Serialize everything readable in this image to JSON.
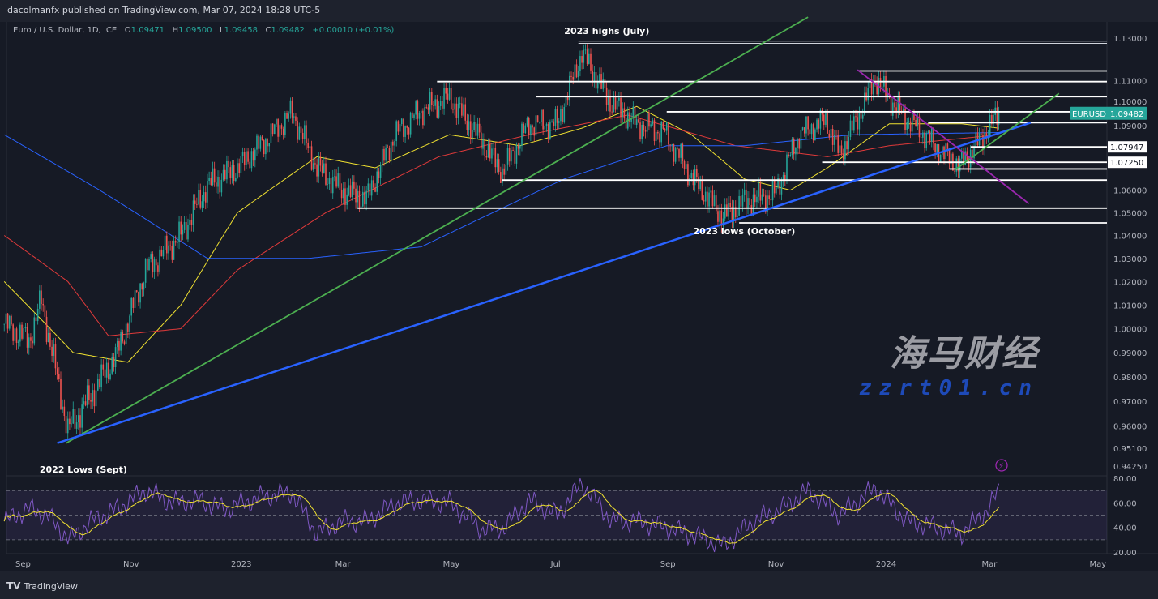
{
  "header": {
    "publisher": "dacolmanfx published on TradingView.com, Mar 07, 2024 18:28 UTC-5"
  },
  "legend": {
    "symbol": "Euro / U.S. Dollar, 1D, ICE",
    "o_label": "O",
    "open": "1.09471",
    "h_label": "H",
    "high": "1.09500",
    "l_label": "L",
    "low": "1.09458",
    "c_label": "C",
    "close": "1.09482",
    "change": "+0.00010 (+0.01%)"
  },
  "footer": {
    "brand": "TradingView",
    "logo": "17"
  },
  "watermark": {
    "text": "海马财经",
    "url": "zzrt01.cn"
  },
  "colors": {
    "background": "#161a25",
    "up": "#26a69a",
    "down": "#ef5350",
    "ma_fast": "#f0e130",
    "ma_mid": "#e03a3a",
    "ma_slow": "#2962ff",
    "trend_long_green": "#4caf50",
    "trend_blue": "#2962ff",
    "trend_purple": "#9c27b0",
    "rsi": "#7e57c2",
    "rsi_ma": "#f0e130",
    "label_bg": "#26a69a"
  },
  "chart_data": {
    "type": "candlestick",
    "symbol": "EURUSD",
    "scale": "log",
    "ylim": [
      0.9425,
      1.135
    ],
    "price_ticks": [
      "1.13000",
      "1.11000",
      "1.10000",
      "1.09000",
      "1.06000",
      "1.05000",
      "1.04000",
      "1.03000",
      "1.02000",
      "1.01000",
      "1.00000",
      "0.99000",
      "0.98000",
      "0.97000",
      "0.96000",
      "0.95100",
      "0.94250"
    ],
    "time_ticks": [
      {
        "label": "Sep",
        "date": "2022-09-01"
      },
      {
        "label": "Nov",
        "date": "2022-11-01"
      },
      {
        "label": "2023",
        "date": "2023-01-01"
      },
      {
        "label": "Mar",
        "date": "2023-03-01"
      },
      {
        "label": "May",
        "date": "2023-05-01"
      },
      {
        "label": "Jul",
        "date": "2023-07-01"
      },
      {
        "label": "Sep",
        "date": "2023-09-01"
      },
      {
        "label": "Nov",
        "date": "2023-11-01"
      },
      {
        "label": "2024",
        "date": "2024-01-01"
      },
      {
        "label": "Mar",
        "date": "2024-03-01"
      },
      {
        "label": "May",
        "date": "2024-05-01"
      }
    ],
    "price_path": [
      [
        "2022-08-22",
        1.002
      ],
      [
        "2022-09-05",
        0.995
      ],
      [
        "2022-09-12",
        1.012
      ],
      [
        "2022-09-27",
        0.958
      ],
      [
        "2022-10-10",
        0.972
      ],
      [
        "2022-10-25",
        0.99
      ],
      [
        "2022-11-10",
        1.025
      ],
      [
        "2022-11-30",
        1.04
      ],
      [
        "2022-12-15",
        1.062
      ],
      [
        "2023-01-01",
        1.07
      ],
      [
        "2023-01-20",
        1.085
      ],
      [
        "2023-02-01",
        1.095
      ],
      [
        "2023-02-15",
        1.07
      ],
      [
        "2023-03-01",
        1.06
      ],
      [
        "2023-03-15",
        1.056
      ],
      [
        "2023-03-31",
        1.085
      ],
      [
        "2023-04-15",
        1.096
      ],
      [
        "2023-05-01",
        1.102
      ],
      [
        "2023-05-15",
        1.087
      ],
      [
        "2023-05-31",
        1.068
      ],
      [
        "2023-06-15",
        1.09
      ],
      [
        "2023-07-01",
        1.09
      ],
      [
        "2023-07-15",
        1.123
      ],
      [
        "2023-07-31",
        1.1
      ],
      [
        "2023-08-15",
        1.09
      ],
      [
        "2023-08-31",
        1.086
      ],
      [
        "2023-09-15",
        1.066
      ],
      [
        "2023-10-03",
        1.048
      ],
      [
        "2023-10-15",
        1.055
      ],
      [
        "2023-11-01",
        1.058
      ],
      [
        "2023-11-15",
        1.085
      ],
      [
        "2023-11-30",
        1.092
      ],
      [
        "2023-12-08",
        1.076
      ],
      [
        "2023-12-20",
        1.096
      ],
      [
        "2023-12-28",
        1.111
      ],
      [
        "2024-01-10",
        1.096
      ],
      [
        "2024-01-25",
        1.085
      ],
      [
        "2024-02-05",
        1.076
      ],
      [
        "2024-02-14",
        1.071
      ],
      [
        "2024-02-25",
        1.082
      ],
      [
        "2024-03-07",
        1.09482
      ]
    ],
    "moving_averages": [
      {
        "color": "#f0e130",
        "points": [
          [
            "2022-08-22",
            1.02
          ],
          [
            "2022-09-30",
            0.99
          ],
          [
            "2022-10-31",
            0.986
          ],
          [
            "2022-11-30",
            1.01
          ],
          [
            "2023-01-01",
            1.05
          ],
          [
            "2023-02-15",
            1.075
          ],
          [
            "2023-03-20",
            1.07
          ],
          [
            "2023-05-01",
            1.085
          ],
          [
            "2023-06-10",
            1.08
          ],
          [
            "2023-07-15",
            1.088
          ],
          [
            "2023-08-15",
            1.098
          ],
          [
            "2023-09-15",
            1.085
          ],
          [
            "2023-10-15",
            1.065
          ],
          [
            "2023-11-10",
            1.06
          ],
          [
            "2023-12-01",
            1.07
          ],
          [
            "2024-01-05",
            1.09
          ],
          [
            "2024-02-15",
            1.09
          ],
          [
            "2024-03-07",
            1.088
          ]
        ]
      },
      {
        "color": "#e03a3a",
        "points": [
          [
            "2022-08-22",
            1.04
          ],
          [
            "2022-09-27",
            1.02
          ],
          [
            "2022-10-20",
            0.997
          ],
          [
            "2022-11-30",
            1.0
          ],
          [
            "2023-01-01",
            1.025
          ],
          [
            "2023-02-20",
            1.05
          ],
          [
            "2023-04-25",
            1.075
          ],
          [
            "2023-06-15",
            1.085
          ],
          [
            "2023-08-10",
            1.094
          ],
          [
            "2023-10-10",
            1.08
          ],
          [
            "2023-12-01",
            1.075
          ],
          [
            "2024-01-05",
            1.08
          ],
          [
            "2024-03-07",
            1.085
          ]
        ]
      },
      {
        "color": "#2962ff",
        "points": [
          [
            "2022-08-22",
            1.085
          ],
          [
            "2022-10-15",
            1.06
          ],
          [
            "2022-12-15",
            1.03
          ],
          [
            "2023-02-10",
            1.03
          ],
          [
            "2023-04-15",
            1.035
          ],
          [
            "2023-07-05",
            1.065
          ],
          [
            "2023-09-01",
            1.08
          ],
          [
            "2023-10-15",
            1.08
          ],
          [
            "2023-12-15",
            1.085
          ],
          [
            "2024-03-07",
            1.086
          ]
        ]
      }
    ],
    "trendlines": [
      {
        "color": "#4caf50",
        "from": [
          "2022-09-26",
          0.953
        ],
        "to": [
          "2023-11-20",
          1.14
        ]
      },
      {
        "color": "#2962ff",
        "from": [
          "2022-09-21",
          0.953
        ],
        "to": [
          "2024-03-25",
          1.0905
        ]
      },
      {
        "color": "#4caf50",
        "from": [
          "2024-02-11",
          1.069
        ],
        "to": [
          "2024-04-10",
          1.104
        ]
      },
      {
        "color": "#9c27b0",
        "from": [
          "2023-12-18",
          1.115
        ],
        "to": [
          "2024-03-24",
          1.054
        ]
      }
    ],
    "levels": [
      {
        "price": 1.1285,
        "from": "2023-07-13",
        "color": "#9598a1"
      },
      {
        "price": 1.1275,
        "from": "2023-07-13",
        "color": "#d1d4dc"
      },
      {
        "price": 1.1145,
        "from": "2023-12-19"
      },
      {
        "price": 1.1095,
        "from": "2023-04-24"
      },
      {
        "price": 1.1025,
        "from": "2023-06-19"
      },
      {
        "price": 1.0955,
        "from": "2023-09-01"
      },
      {
        "price": 1.0905,
        "from": "2024-01-27"
      },
      {
        "price": 1.07947,
        "from": "2024-02-20",
        "label": "1.07947"
      },
      {
        "price": 1.0725,
        "from": "2023-11-28",
        "label": "1.07250"
      },
      {
        "price": 1.0695,
        "from": "2024-02-08"
      },
      {
        "price": 1.0645,
        "from": "2023-05-31"
      },
      {
        "price": 1.052,
        "from": "2023-03-10"
      },
      {
        "price": 1.0455,
        "from": "2023-10-12"
      }
    ],
    "last_price": {
      "symbol": "EURUSD",
      "value": "1.09482"
    },
    "annotations": [
      {
        "text": "2023 highs (July)",
        "date": "2023-07-05",
        "price": 1.1335
      },
      {
        "text": "2023 lows (October)",
        "date": "2023-09-16",
        "price": 1.042
      },
      {
        "text": "2022 Lows (Sept)",
        "date": "2022-09-11",
        "price": 0.9425
      }
    ],
    "rsi": {
      "ticks": [
        "80.00",
        "60.00",
        "40.00",
        "20.00"
      ],
      "band": [
        30,
        70
      ],
      "points": [
        [
          "2022-08-22",
          45
        ],
        [
          "2022-09-05",
          55
        ],
        [
          "2022-09-15",
          50
        ],
        [
          "2022-09-28",
          30
        ],
        [
          "2022-10-10",
          45
        ],
        [
          "2022-10-25",
          55
        ],
        [
          "2022-11-10",
          70
        ],
        [
          "2022-11-25",
          60
        ],
        [
          "2022-12-10",
          62
        ],
        [
          "2022-12-25",
          55
        ],
        [
          "2023-01-15",
          65
        ],
        [
          "2023-02-01",
          68
        ],
        [
          "2023-02-15",
          35
        ],
        [
          "2023-03-01",
          45
        ],
        [
          "2023-03-15",
          45
        ],
        [
          "2023-04-01",
          60
        ],
        [
          "2023-04-15",
          62
        ],
        [
          "2023-05-01",
          60
        ],
        [
          "2023-05-20",
          38
        ],
        [
          "2023-06-01",
          40
        ],
        [
          "2023-06-15",
          62
        ],
        [
          "2023-07-01",
          50
        ],
        [
          "2023-07-15",
          76
        ],
        [
          "2023-08-01",
          45
        ],
        [
          "2023-08-15",
          45
        ],
        [
          "2023-09-01",
          40
        ],
        [
          "2023-09-20",
          32
        ],
        [
          "2023-10-03",
          25
        ],
        [
          "2023-10-20",
          45
        ],
        [
          "2023-11-05",
          55
        ],
        [
          "2023-11-20",
          70
        ],
        [
          "2023-12-08",
          50
        ],
        [
          "2023-12-28",
          72
        ],
        [
          "2024-01-15",
          45
        ],
        [
          "2024-02-01",
          40
        ],
        [
          "2024-02-15",
          35
        ],
        [
          "2024-03-01",
          55
        ],
        [
          "2024-03-07",
          70
        ]
      ]
    }
  }
}
